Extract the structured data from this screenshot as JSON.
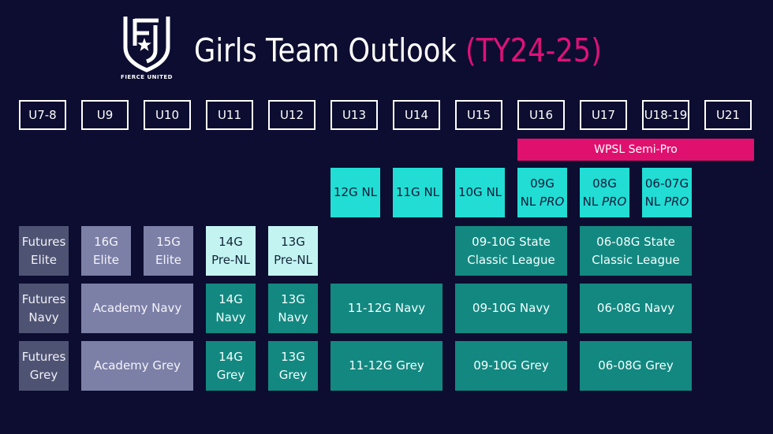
{
  "logo": {
    "icon": "fierce-united-shield-star-icon",
    "text": "FIERCE UNITED"
  },
  "title": {
    "main": "Girls Team Outlook",
    "season": "(TY24-25)"
  },
  "age_groups": [
    "U7-8",
    "U9",
    "U10",
    "U11",
    "U12",
    "U13",
    "U14",
    "U15",
    "U16",
    "U17",
    "U18-19",
    "U21"
  ],
  "wpsl": {
    "label": "WPSL Semi-Pro"
  },
  "national_league": [
    {
      "line1": "12G NL"
    },
    {
      "line1": "11G NL"
    },
    {
      "line1": "10G NL"
    },
    {
      "line1": "09G",
      "line2a": "NL ",
      "line2b": "PRO"
    },
    {
      "line1": "08G",
      "line2a": "NL ",
      "line2b": "PRO"
    },
    {
      "line1": "06-07G",
      "line2a": "NL ",
      "line2b": "PRO"
    }
  ],
  "elite_row": [
    {
      "line1": "Futures",
      "line2": "Elite"
    },
    {
      "line1": "16G",
      "line2": "Elite"
    },
    {
      "line1": "15G",
      "line2": "Elite"
    },
    {
      "line1": "14G",
      "line2": "Pre-NL"
    },
    {
      "line1": "13G",
      "line2": "Pre-NL"
    },
    {
      "line1": "09-10G State",
      "line2": "Classic League"
    },
    {
      "line1": "06-08G State",
      "line2": "Classic League"
    }
  ],
  "navy_row": [
    {
      "line1": "Futures",
      "line2": "Navy"
    },
    {
      "line1": "Academy Navy"
    },
    {
      "line1": "14G",
      "line2": "Navy"
    },
    {
      "line1": "13G",
      "line2": "Navy"
    },
    {
      "line1": "11-12G Navy"
    },
    {
      "line1": "09-10G Navy"
    },
    {
      "line1": "06-08G Navy"
    }
  ],
  "grey_row": [
    {
      "line1": "Futures",
      "line2": "Grey"
    },
    {
      "line1": "Academy Grey"
    },
    {
      "line1": "14G",
      "line2": "Grey"
    },
    {
      "line1": "13G",
      "line2": "Grey"
    },
    {
      "line1": "11-12G Grey"
    },
    {
      "line1": "09-10G Grey"
    },
    {
      "line1": "06-08G Grey"
    }
  ],
  "colors": {
    "background": "#0c0d30",
    "accent_pink": "#e0106e",
    "cyan": "#21ddd4",
    "teal": "#138880",
    "pale_cyan": "#c4f4f2",
    "slate": "#4f5373",
    "lavender": "#7c7fa6"
  }
}
